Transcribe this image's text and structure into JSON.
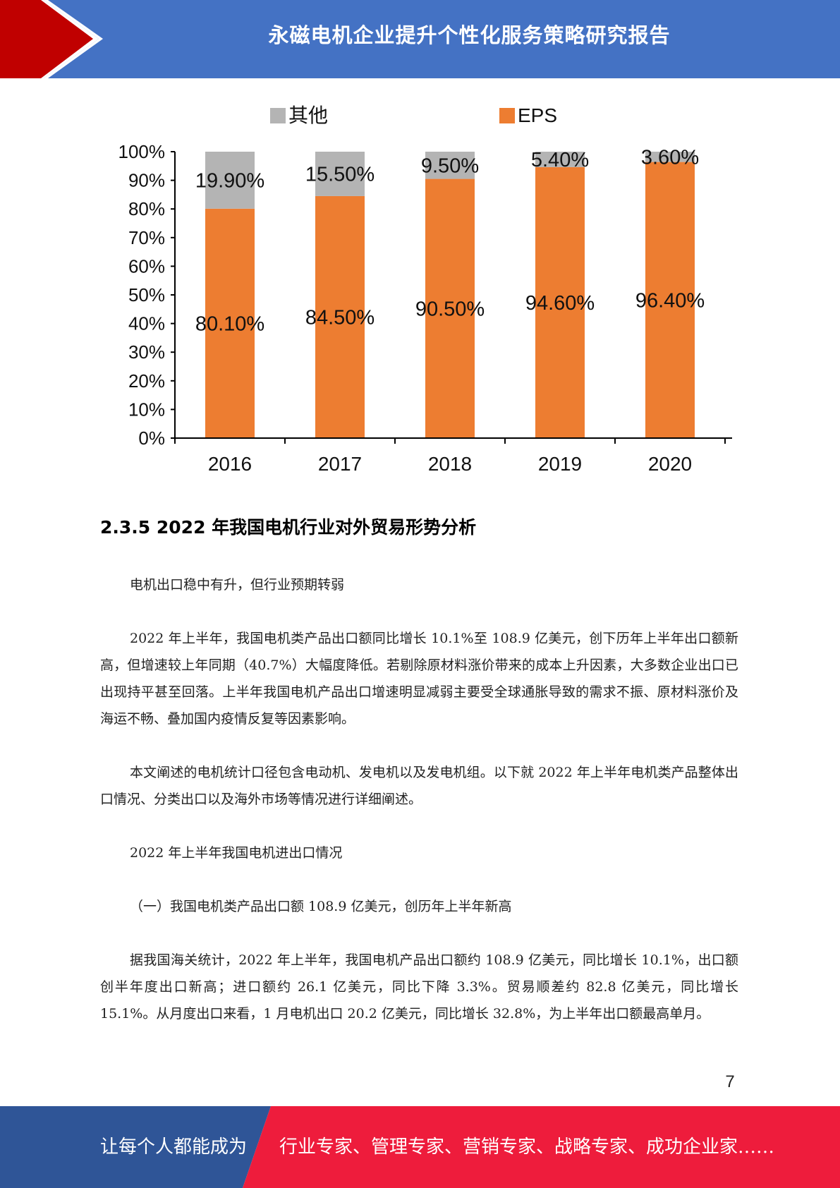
{
  "header": {
    "title": "永磁电机企业提升个性化服务策略研究报告"
  },
  "chart_data": {
    "type": "bar",
    "stacked": true,
    "categories": [
      "2016",
      "2017",
      "2018",
      "2019",
      "2020"
    ],
    "series": [
      {
        "name": "EPS",
        "color": "#ED7D31",
        "values": [
          80.1,
          84.5,
          90.5,
          94.6,
          96.4
        ],
        "labels": [
          "80.10%",
          "84.50%",
          "90.50%",
          "94.60%",
          "96.40%"
        ]
      },
      {
        "name": "其他",
        "color": "#B4B4B4",
        "values": [
          19.9,
          15.5,
          9.5,
          5.4,
          3.6
        ],
        "labels": [
          "19.90%",
          "15.50%",
          "9.50%",
          "5.40%",
          "3.60%"
        ]
      }
    ],
    "legend": [
      "其他",
      "EPS"
    ],
    "legend_position": "top",
    "yticks": [
      "0%",
      "10%",
      "20%",
      "30%",
      "40%",
      "50%",
      "60%",
      "70%",
      "80%",
      "90%",
      "100%"
    ],
    "ylim": [
      0,
      100
    ],
    "title": "",
    "xlabel": "",
    "ylabel": ""
  },
  "section": {
    "heading": "2.3.5 2022 年我国电机行业对外贸易形势分析"
  },
  "paragraphs": [
    "电机出口稳中有升，但行业预期转弱",
    "2022 年上半年，我国电机类产品出口额同比增长 10.1%至 108.9 亿美元，创下历年上半年出口额新高，但增速较上年同期（40.7%）大幅度降低。若剔除原材料涨价带来的成本上升因素，大多数企业出口已出现持平甚至回落。上半年我国电机产品出口增速明显减弱主要受全球通胀导致的需求不振、原材料涨价及海运不畅、叠加国内疫情反复等因素影响。",
    "本文阐述的电机统计口径包含电动机、发电机以及发电机组。以下就 2022 年上半年电机类产品整体出口情况、分类出口以及海外市场等情况进行详细阐述。",
    "2022 年上半年我国电机进出口情况",
    "（一）我国电机类产品出口额 108.9 亿美元，创历年上半年新高",
    "据我国海关统计，2022 年上半年，我国电机产品出口额约 108.9 亿美元，同比增长 10.1%，出口额创半年度出口新高；进口额约 26.1 亿美元，同比下降 3.3%。贸易顺差约 82.8 亿美元，同比增长 15.1%。从月度出口来看，1 月电机出口 20.2 亿美元，同比增长 32.8%，为上半年出口额最高单月。"
  ],
  "page_number": "7",
  "footer": {
    "left": "让每个人都能成为",
    "right": "行业专家、管理专家、营销专家、战略专家、成功企业家……",
    "colors": {
      "left": "#2F5597",
      "right": "#EE1C3C"
    }
  }
}
